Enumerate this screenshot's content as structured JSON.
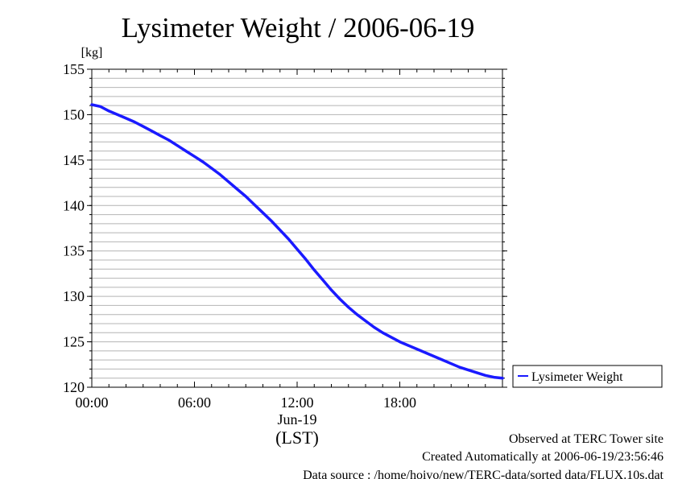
{
  "chart_data": {
    "type": "line",
    "title": "Lysimeter Weight / 2006-06-19",
    "ylabel": "[kg]",
    "xlabel": "(LST)",
    "date_label": "Jun-19",
    "ylim": [
      120,
      155
    ],
    "yticks": [
      "120",
      "125",
      "130",
      "135",
      "140",
      "145",
      "150",
      "155"
    ],
    "y_tick_values": [
      120,
      125,
      130,
      135,
      140,
      145,
      150,
      155
    ],
    "y_minor_step": 1,
    "xlim_hours": [
      0,
      24
    ],
    "xticks": [
      "00:00",
      "06:00",
      "12:00",
      "18:00"
    ],
    "x_tick_hours": [
      0,
      6,
      12,
      18
    ],
    "grid": true,
    "legend_position": "right",
    "series": [
      {
        "name": "Lysimeter Weight",
        "color": "#1a1aff",
        "x_hours": [
          0,
          0.5,
          1,
          1.5,
          2,
          2.5,
          3,
          3.5,
          4,
          4.5,
          5,
          5.5,
          6,
          6.5,
          7,
          7.5,
          8,
          8.5,
          9,
          9.5,
          10,
          10.5,
          11,
          11.5,
          12,
          12.5,
          13,
          13.5,
          14,
          14.5,
          15,
          15.5,
          16,
          16.5,
          17,
          17.5,
          18,
          18.5,
          19,
          19.5,
          20,
          20.5,
          21,
          21.5,
          22,
          22.5,
          23,
          23.5,
          24
        ],
        "y": [
          151.1,
          150.9,
          150.4,
          150.0,
          149.6,
          149.2,
          148.7,
          148.2,
          147.7,
          147.2,
          146.6,
          146.0,
          145.4,
          144.8,
          144.1,
          143.4,
          142.6,
          141.8,
          141.0,
          140.1,
          139.2,
          138.3,
          137.3,
          136.3,
          135.2,
          134.1,
          132.9,
          131.8,
          130.7,
          129.7,
          128.8,
          128.0,
          127.3,
          126.6,
          126.0,
          125.5,
          125.0,
          124.6,
          124.2,
          123.8,
          123.4,
          123.0,
          122.6,
          122.2,
          121.9,
          121.6,
          121.3,
          121.1,
          121.0
        ]
      }
    ]
  },
  "footer": {
    "line1": "Observed at TERC Tower site",
    "line2": "Created Automatically at 2006-06-19/23:56:46",
    "line3": "Data source : /home/hoivo/new/TERC-data/sorted  data/FLUX.10s.dat"
  }
}
